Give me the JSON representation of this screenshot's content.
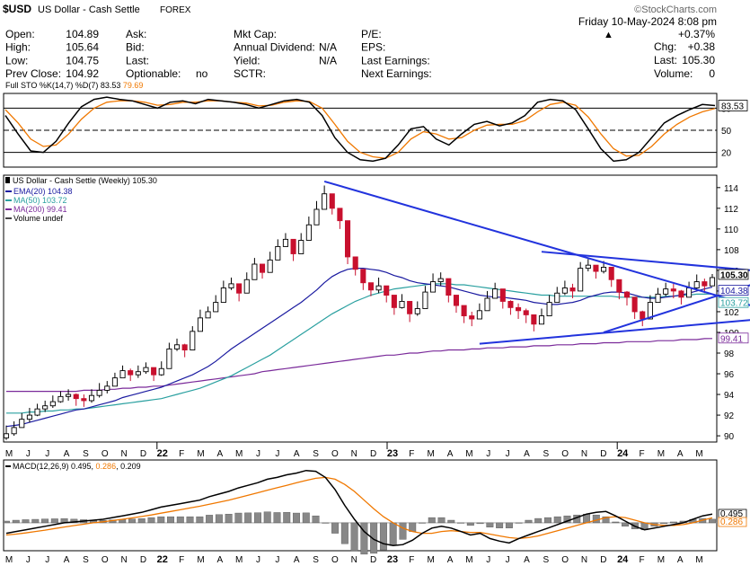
{
  "header": {
    "symbol": "$USD",
    "name": "US Dollar - Cash Settle",
    "exchange": "FOREX",
    "watermark": "©StockCharts.com",
    "date": "Friday 10-May-2024 8:08 pm",
    "change_pct": "+0.37%",
    "chg_label": "Chg:",
    "chg_value": "+0.38",
    "last_label": "Last:",
    "last_value": "105.30",
    "volume_label": "Volume:",
    "volume_value": "0",
    "col1": [
      {
        "label": "Open:",
        "value": "104.89"
      },
      {
        "label": "High:",
        "value": "105.64"
      },
      {
        "label": "Low:",
        "value": "104.75"
      },
      {
        "label": "Prev Close:",
        "value": "104.92"
      }
    ],
    "col2": [
      {
        "label": "Ask:",
        "value": ""
      },
      {
        "label": "Bid:",
        "value": ""
      },
      {
        "label": "Last:",
        "value": ""
      },
      {
        "label": "Optionable:",
        "value": "no"
      }
    ],
    "col3": [
      {
        "label": "Mkt Cap:",
        "value": ""
      },
      {
        "label": "Annual Dividend:",
        "value": "N/A"
      },
      {
        "label": "Yield:",
        "value": "N/A"
      },
      {
        "label": "SCTR:",
        "value": ""
      }
    ],
    "col4": [
      {
        "label": "P/E:",
        "value": ""
      },
      {
        "label": "EPS:",
        "value": ""
      },
      {
        "label": "Last Earnings:",
        "value": ""
      },
      {
        "label": "Next Earnings:",
        "value": ""
      }
    ]
  },
  "chart_data": [
    {
      "type": "line",
      "panel": "stochastic",
      "legend": [
        "Full STO %K(14,7) %D(7) 83.53",
        "79.69"
      ],
      "levels": [
        80,
        50,
        20
      ],
      "ylim": [
        0,
        100
      ],
      "current_label": "83.53",
      "colors": {
        "k": "#000000",
        "d": "#f07800"
      },
      "series": [
        {
          "name": "%K(14,7)",
          "values": [
            70,
            45,
            22,
            20,
            35,
            60,
            82,
            92,
            95,
            92,
            90,
            85,
            80,
            88,
            90,
            86,
            92,
            90,
            88,
            85,
            80,
            85,
            90,
            92,
            88,
            70,
            40,
            20,
            10,
            8,
            12,
            30,
            52,
            55,
            38,
            30,
            45,
            58,
            62,
            56,
            60,
            70,
            88,
            92,
            90,
            78,
            52,
            25,
            8,
            10,
            20,
            40,
            60,
            70,
            78,
            85,
            83.53
          ]
        },
        {
          "name": "%D(7)",
          "values": [
            78,
            60,
            38,
            28,
            30,
            45,
            65,
            80,
            88,
            90,
            90,
            88,
            84,
            85,
            88,
            88,
            90,
            90,
            88,
            87,
            83,
            84,
            88,
            90,
            89,
            80,
            58,
            35,
            20,
            14,
            12,
            20,
            38,
            48,
            45,
            38,
            40,
            50,
            57,
            58,
            58,
            63,
            75,
            85,
            88,
            84,
            68,
            45,
            25,
            15,
            16,
            28,
            45,
            58,
            68,
            75,
            79.69
          ]
        }
      ]
    },
    {
      "type": "candlestick",
      "panel": "price",
      "title": "US Dollar - Cash Settle (Weekly) 105.30",
      "legend": [
        "EMA(20) 104.38",
        "MA(50) 103.72",
        "MA(200) 99.41",
        "Volume undef"
      ],
      "ylim": [
        89.4,
        115.2
      ],
      "y_ticks": [
        90,
        92,
        94,
        96,
        98,
        100,
        102,
        104,
        106,
        108,
        110,
        112,
        114
      ],
      "x_labels": [
        "M",
        "J",
        "J",
        "A",
        "S",
        "O",
        "N",
        "D",
        "22",
        "F",
        "M",
        "A",
        "M",
        "J",
        "J",
        "A",
        "S",
        "O",
        "N",
        "D",
        "23",
        "F",
        "M",
        "A",
        "M",
        "J",
        "J",
        "A",
        "S",
        "O",
        "N",
        "D",
        "24",
        "F",
        "M",
        "A",
        "M"
      ],
      "year_labels": [
        "22",
        "23",
        "24"
      ],
      "last_labels": [
        "105.30",
        "104.38",
        "103.72",
        "99.41"
      ],
      "colors": {
        "up": "#000000",
        "down": "#c8102e",
        "ema20": "#1a1aa0",
        "ma50": "#2aa0a0",
        "ma200": "#7a2a9a",
        "trend": "#2233dd"
      },
      "close": [
        90.2,
        90.8,
        91.6,
        92.0,
        92.6,
        92.9,
        93.3,
        93.8,
        94.0,
        93.6,
        93.4,
        93.9,
        94.4,
        94.8,
        95.6,
        96.3,
        95.9,
        96.2,
        96.6,
        95.9,
        96.5,
        98.4,
        98.8,
        98.3,
        100.1,
        101.4,
        102.0,
        102.9,
        104.3,
        104.7,
        103.8,
        105.1,
        106.6,
        105.8,
        107.0,
        108.3,
        109.0,
        107.6,
        108.9,
        110.4,
        111.9,
        113.4,
        112.0,
        110.8,
        107.3,
        106.1,
        104.8,
        104.1,
        104.5,
        103.6,
        102.4,
        103.0,
        101.8,
        102.3,
        103.9,
        104.9,
        105.2,
        103.6,
        102.6,
        101.6,
        101.3,
        102.1,
        103.3,
        104.2,
        103.0,
        102.4,
        102.1,
        101.7,
        100.8,
        101.6,
        102.9,
        103.8,
        104.3,
        104.0,
        106.2,
        106.5,
        105.9,
        106.3,
        105.1,
        103.9,
        103.4,
        102.0,
        101.3,
        102.9,
        103.7,
        104.2,
        104.0,
        103.4,
        104.3,
        104.9,
        104.5,
        105.3
      ],
      "high": [
        91.0,
        91.4,
        92.2,
        92.7,
        93.1,
        93.4,
        93.9,
        94.3,
        94.5,
        94.1,
        94.0,
        94.5,
        95.1,
        95.3,
        96.1,
        96.8,
        96.5,
        96.8,
        97.1,
        96.5,
        97.2,
        99.0,
        99.4,
        98.9,
        100.6,
        102.2,
        102.5,
        103.6,
        105.0,
        105.3,
        104.4,
        105.8,
        107.2,
        106.4,
        107.8,
        109.0,
        109.6,
        108.3,
        109.6,
        111.2,
        112.7,
        114.2,
        112.8,
        111.5,
        108.0,
        106.7,
        105.6,
        104.8,
        105.3,
        104.3,
        103.1,
        103.7,
        102.5,
        103.0,
        104.5,
        105.7,
        105.8,
        104.2,
        103.3,
        102.3,
        102.0,
        102.8,
        104.0,
        104.8,
        103.7,
        103.1,
        102.8,
        102.3,
        101.5,
        102.3,
        103.6,
        104.4,
        105.0,
        104.7,
        106.8,
        107.1,
        106.5,
        106.9,
        105.8,
        104.6,
        104.0,
        102.7,
        102.1,
        103.6,
        104.3,
        104.8,
        104.7,
        104.1,
        104.9,
        105.6,
        105.2,
        105.64
      ],
      "low": [
        89.6,
        90.0,
        90.9,
        91.3,
        91.9,
        92.3,
        92.7,
        93.2,
        93.4,
        92.9,
        92.8,
        93.2,
        93.7,
        94.1,
        94.9,
        95.7,
        95.3,
        95.6,
        96.0,
        95.3,
        95.8,
        97.7,
        98.2,
        97.6,
        99.4,
        100.6,
        101.4,
        102.2,
        103.6,
        104.1,
        103.0,
        104.5,
        105.9,
        105.2,
        106.3,
        107.6,
        108.4,
        106.9,
        108.2,
        109.6,
        111.2,
        112.6,
        111.4,
        110.0,
        106.6,
        105.5,
        104.1,
        103.5,
        103.8,
        102.9,
        101.7,
        102.3,
        101.0,
        101.6,
        103.2,
        104.2,
        104.5,
        102.9,
        101.9,
        100.9,
        100.6,
        101.4,
        102.6,
        103.5,
        102.3,
        101.7,
        101.3,
        100.9,
        100.1,
        100.9,
        102.2,
        103.1,
        103.6,
        103.3,
        105.5,
        105.9,
        105.2,
        105.7,
        104.4,
        103.2,
        102.6,
        101.3,
        100.6,
        102.2,
        103.0,
        103.5,
        103.3,
        102.7,
        103.6,
        104.2,
        103.8,
        104.75
      ],
      "ema20": [
        90.9,
        91.0,
        91.1,
        91.3,
        91.5,
        91.7,
        91.9,
        92.1,
        92.3,
        92.5,
        92.6,
        92.8,
        93.0,
        93.2,
        93.4,
        93.7,
        93.9,
        94.1,
        94.3,
        94.5,
        94.7,
        95.0,
        95.3,
        95.6,
        95.9,
        96.3,
        96.7,
        97.2,
        97.8,
        98.4,
        98.9,
        99.4,
        99.9,
        100.4,
        100.9,
        101.4,
        101.9,
        102.4,
        102.9,
        103.5,
        104.1,
        104.8,
        105.4,
        105.8,
        106.1,
        106.2,
        106.2,
        106.1,
        106.0,
        105.8,
        105.5,
        105.3,
        105.0,
        104.8,
        104.7,
        104.6,
        104.5,
        104.4,
        104.2,
        104.0,
        103.8,
        103.6,
        103.5,
        103.4,
        103.4,
        103.3,
        103.2,
        103.1,
        102.9,
        102.8,
        102.7,
        102.7,
        102.8,
        102.9,
        103.1,
        103.4,
        103.6,
        103.8,
        103.9,
        103.9,
        103.8,
        103.6,
        103.4,
        103.3,
        103.3,
        103.4,
        103.5,
        103.6,
        103.8,
        104.0,
        104.2,
        104.38
      ],
      "ma50": [
        92.2,
        92.2,
        92.2,
        92.3,
        92.3,
        92.4,
        92.4,
        92.5,
        92.5,
        92.6,
        92.6,
        92.7,
        92.8,
        92.9,
        93.0,
        93.1,
        93.2,
        93.3,
        93.4,
        93.5,
        93.6,
        93.8,
        94.0,
        94.2,
        94.4,
        94.6,
        94.9,
        95.2,
        95.5,
        95.8,
        96.2,
        96.6,
        97.0,
        97.4,
        97.8,
        98.3,
        98.8,
        99.3,
        99.8,
        100.3,
        100.8,
        101.3,
        101.8,
        102.2,
        102.6,
        103.0,
        103.3,
        103.6,
        103.8,
        104.0,
        104.2,
        104.3,
        104.4,
        104.5,
        104.6,
        104.7,
        104.7,
        104.7,
        104.6,
        104.6,
        104.5,
        104.4,
        104.3,
        104.2,
        104.1,
        104.0,
        103.9,
        103.8,
        103.7,
        103.6,
        103.6,
        103.5,
        103.5,
        103.5,
        103.5,
        103.5,
        103.5,
        103.5,
        103.5,
        103.4,
        103.4,
        103.4,
        103.4,
        103.4,
        103.4,
        103.5,
        103.5,
        103.6,
        103.6,
        103.7,
        103.7,
        103.72
      ],
      "ma200": [
        94.3,
        94.3,
        94.3,
        94.3,
        94.3,
        94.3,
        94.3,
        94.3,
        94.3,
        94.3,
        94.4,
        94.4,
        94.4,
        94.5,
        94.5,
        94.6,
        94.6,
        94.7,
        94.7,
        94.8,
        94.8,
        94.9,
        95.0,
        95.1,
        95.2,
        95.3,
        95.4,
        95.5,
        95.6,
        95.7,
        95.8,
        95.9,
        96.0,
        96.2,
        96.3,
        96.4,
        96.5,
        96.6,
        96.7,
        96.8,
        96.9,
        97.0,
        97.1,
        97.2,
        97.3,
        97.4,
        97.5,
        97.6,
        97.7,
        97.8,
        97.8,
        97.9,
        98.0,
        98.0,
        98.1,
        98.2,
        98.2,
        98.3,
        98.3,
        98.3,
        98.4,
        98.4,
        98.5,
        98.5,
        98.5,
        98.6,
        98.6,
        98.6,
        98.7,
        98.7,
        98.7,
        98.8,
        98.8,
        98.8,
        98.9,
        98.9,
        98.9,
        99.0,
        99.0,
        99.0,
        99.1,
        99.1,
        99.1,
        99.1,
        99.2,
        99.2,
        99.2,
        99.3,
        99.3,
        99.3,
        99.4,
        99.41
      ],
      "trendlines": [
        {
          "from": [
            41,
            114.6
          ],
          "to": [
            96,
            102.6
          ]
        },
        {
          "from": [
            69,
            107.8
          ],
          "to": [
            96,
            106.0
          ]
        },
        {
          "from": [
            61,
            98.9
          ],
          "to": [
            96,
            101.2
          ]
        },
        {
          "from": [
            77,
            100.0
          ],
          "to": [
            96,
            104.6
          ]
        }
      ]
    },
    {
      "type": "bar+line",
      "panel": "macd",
      "legend": [
        "MACD(12,26,9) 0.495",
        "0.286",
        "0.209"
      ],
      "ylim": [
        -1.6,
        3.6
      ],
      "last_labels": [
        "0.495",
        "0.286"
      ],
      "colors": {
        "macd": "#000000",
        "signal": "#f07800",
        "hist": "#888888"
      },
      "series": [
        {
          "name": "MACD(12,26,9)",
          "values": [
            -0.6,
            -0.5,
            -0.4,
            -0.3,
            -0.2,
            -0.1,
            0.0,
            0.05,
            0.1,
            0.15,
            0.2,
            0.3,
            0.4,
            0.5,
            0.6,
            0.75,
            0.9,
            1.0,
            1.1,
            1.2,
            1.3,
            1.5,
            1.65,
            1.8,
            2.0,
            2.15,
            2.3,
            2.5,
            2.6,
            2.75,
            2.85,
            3.0,
            2.95,
            2.6,
            1.9,
            1.0,
            0.2,
            -0.5,
            -0.95,
            -1.2,
            -1.3,
            -1.25,
            -1.0,
            -0.6,
            -0.3,
            -0.2,
            -0.3,
            -0.5,
            -0.7,
            -0.6,
            -0.9,
            -1.05,
            -1.15,
            -0.9,
            -0.7,
            -0.5,
            -0.3,
            -0.1,
            0.1,
            0.3,
            0.5,
            0.6,
            0.65,
            0.4,
            0.1,
            -0.2,
            -0.4,
            -0.3,
            -0.2,
            -0.1,
            0.0,
            0.2,
            0.4,
            0.495
          ]
        },
        {
          "name": "signal",
          "values": [
            -0.7,
            -0.65,
            -0.58,
            -0.5,
            -0.42,
            -0.33,
            -0.24,
            -0.16,
            -0.08,
            0.0,
            0.06,
            0.13,
            0.2,
            0.28,
            0.36,
            0.45,
            0.55,
            0.65,
            0.75,
            0.85,
            0.95,
            1.06,
            1.18,
            1.3,
            1.44,
            1.58,
            1.72,
            1.87,
            2.01,
            2.15,
            2.29,
            2.43,
            2.55,
            2.6,
            2.5,
            2.2,
            1.8,
            1.3,
            0.8,
            0.35,
            0.0,
            -0.3,
            -0.5,
            -0.6,
            -0.6,
            -0.5,
            -0.45,
            -0.5,
            -0.55,
            -0.55,
            -0.65,
            -0.75,
            -0.85,
            -0.9,
            -0.85,
            -0.75,
            -0.6,
            -0.45,
            -0.3,
            -0.15,
            0.0,
            0.15,
            0.3,
            0.35,
            0.3,
            0.15,
            0.0,
            -0.1,
            -0.15,
            -0.15,
            -0.1,
            0.0,
            0.15,
            0.286
          ]
        },
        {
          "name": "histogram",
          "values": [
            0.1,
            0.15,
            0.18,
            0.2,
            0.22,
            0.23,
            0.24,
            0.21,
            0.18,
            0.15,
            0.14,
            0.17,
            0.2,
            0.22,
            0.24,
            0.3,
            0.35,
            0.35,
            0.35,
            0.35,
            0.35,
            0.44,
            0.47,
            0.5,
            0.56,
            0.57,
            0.58,
            0.63,
            0.59,
            0.6,
            0.56,
            0.57,
            0.4,
            0.0,
            -0.6,
            -1.2,
            -1.6,
            -1.8,
            -1.75,
            -1.55,
            -1.3,
            -0.95,
            -0.5,
            0.0,
            0.3,
            0.3,
            0.15,
            0.0,
            -0.15,
            -0.05,
            -0.25,
            -0.3,
            -0.3,
            0.0,
            0.15,
            0.25,
            0.3,
            0.35,
            0.4,
            0.45,
            0.5,
            0.45,
            0.35,
            0.05,
            -0.2,
            -0.35,
            -0.4,
            -0.2,
            -0.05,
            0.05,
            0.1,
            0.2,
            0.25,
            0.209
          ]
        }
      ]
    }
  ]
}
